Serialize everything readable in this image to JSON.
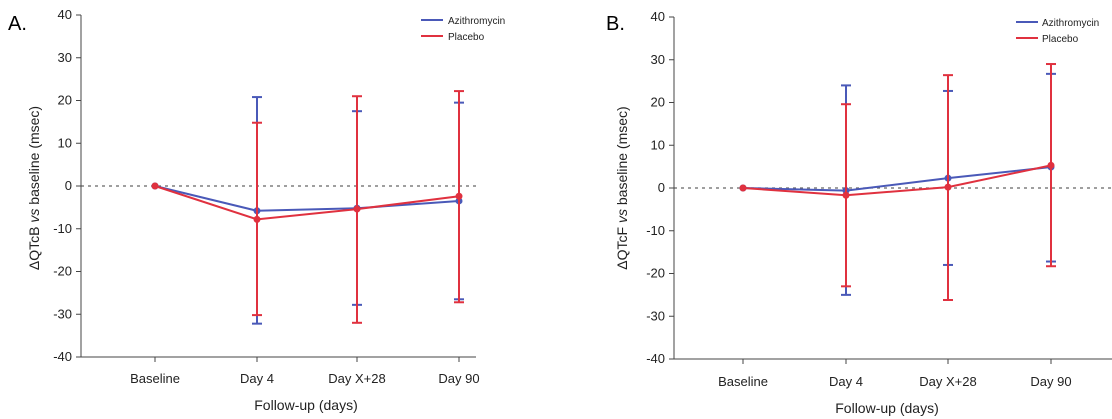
{
  "colors": {
    "azithromycin": "#4a59b8",
    "placebo": "#e0313f"
  },
  "chart_data": [
    {
      "panel_label": "A.",
      "type": "line",
      "categories": [
        "Baseline",
        "Day 4",
        "Day X+28",
        "Day 90"
      ],
      "ylim": [
        -40,
        40
      ],
      "yticks": [
        40,
        30,
        20,
        10,
        0,
        -10,
        -20,
        -30,
        -40
      ],
      "ylabel_parts": [
        "ΔQTcB ",
        "vs",
        " baseline (msec)"
      ],
      "xlabel": "Follow-up (days)",
      "legend_position": "top-right",
      "reference_line": 0,
      "series": [
        {
          "name": "Azithromycin",
          "color_key": "azithromycin",
          "values": [
            0,
            -5.8,
            -5.2,
            -3.5
          ],
          "err_high": [
            null,
            20.8,
            17.5,
            19.5
          ],
          "err_low": [
            null,
            -32.2,
            -27.8,
            -26.5
          ]
        },
        {
          "name": "Placebo",
          "color_key": "placebo",
          "values": [
            0,
            -7.8,
            -5.4,
            -2.4
          ],
          "err_high": [
            null,
            14.8,
            21.0,
            22.2
          ],
          "err_low": [
            null,
            -30.2,
            -32.0,
            -27.2
          ]
        }
      ]
    },
    {
      "panel_label": "B.",
      "type": "line",
      "categories": [
        "Baseline",
        "Day 4",
        "Day X+28",
        "Day 90"
      ],
      "ylim": [
        -40,
        40
      ],
      "yticks": [
        40,
        30,
        20,
        10,
        0,
        -10,
        -20,
        -30,
        -40
      ],
      "ylabel_parts": [
        "ΔQTcF ",
        "vs",
        " baseline (msec)"
      ],
      "xlabel": "Follow-up (days)",
      "legend_position": "top-right",
      "reference_line": 0,
      "series": [
        {
          "name": "Azithromycin",
          "color_key": "azithromycin",
          "values": [
            0,
            -0.6,
            2.3,
            4.9
          ],
          "err_high": [
            null,
            24.0,
            22.7,
            26.7
          ],
          "err_low": [
            null,
            -25.0,
            -18.0,
            -17.2
          ]
        },
        {
          "name": "Placebo",
          "color_key": "placebo",
          "values": [
            0,
            -1.7,
            0.2,
            5.3
          ],
          "err_high": [
            null,
            19.6,
            26.4,
            29.0
          ],
          "err_low": [
            null,
            -23.0,
            -26.2,
            -18.3
          ]
        }
      ]
    }
  ]
}
